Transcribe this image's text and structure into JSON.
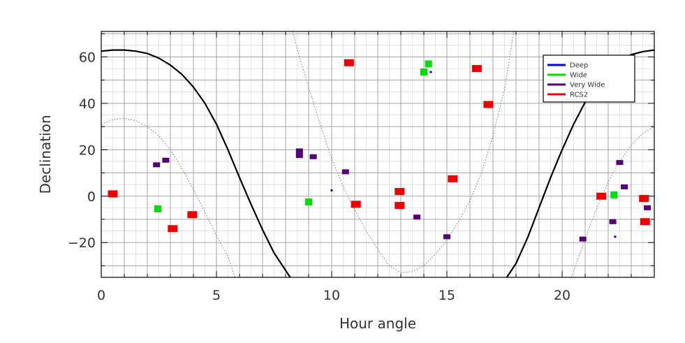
{
  "chart_data": {
    "type": "scatter",
    "title": "",
    "xlabel": "Hour angle",
    "ylabel": "Declination",
    "xlim": [
      0,
      24
    ],
    "ylim": [
      -35,
      71
    ],
    "xticks": [
      0,
      5,
      10,
      15,
      20
    ],
    "yticks": [
      -20,
      0,
      20,
      40,
      60
    ],
    "grid": true,
    "legend_position": "top-right",
    "colors": {
      "Deep": "#0000ee",
      "Wide": "#00dd00",
      "Very Wide": "#550077",
      "RCS2": "#ee0000",
      "curve": "#000000"
    },
    "legend": [
      "Deep",
      "Wide",
      "Very Wide",
      "RCS2"
    ],
    "series": [
      {
        "name": "Deep",
        "patches": [
          {
            "x": 10.0,
            "y": 2.5
          },
          {
            "x": 14.3,
            "y": 53.5
          },
          {
            "x": 22.3,
            "y": -17.5
          }
        ]
      },
      {
        "name": "Wide",
        "patches": [
          {
            "x": 2.45,
            "y": -5.5
          },
          {
            "x": 9.0,
            "y": -2.5
          },
          {
            "x": 14.0,
            "y": 53.5
          },
          {
            "x": 14.2,
            "y": 57
          },
          {
            "x": 22.25,
            "y": 0.5
          }
        ]
      },
      {
        "name": "Very Wide",
        "patches": [
          {
            "x": 2.4,
            "y": 13.5
          },
          {
            "x": 2.8,
            "y": 15.5
          },
          {
            "x": 8.6,
            "y": 19.5
          },
          {
            "x": 8.6,
            "y": 17.5
          },
          {
            "x": 9.2,
            "y": 17
          },
          {
            "x": 10.6,
            "y": 10.5
          },
          {
            "x": 13.7,
            "y": -9
          },
          {
            "x": 15.0,
            "y": -17.5
          },
          {
            "x": 20.9,
            "y": -18.5
          },
          {
            "x": 22.2,
            "y": -11
          },
          {
            "x": 22.5,
            "y": 14.5
          },
          {
            "x": 22.7,
            "y": 4
          },
          {
            "x": 23.7,
            "y": -5
          }
        ]
      },
      {
        "name": "RCS2",
        "patches": [
          {
            "x": 0.5,
            "y": 1
          },
          {
            "x": 3.1,
            "y": -14
          },
          {
            "x": 3.95,
            "y": -8
          },
          {
            "x": 10.75,
            "y": 57.5
          },
          {
            "x": 11.05,
            "y": -3.5
          },
          {
            "x": 12.95,
            "y": 2
          },
          {
            "x": 12.95,
            "y": -4
          },
          {
            "x": 15.25,
            "y": 7.5
          },
          {
            "x": 16.3,
            "y": 55
          },
          {
            "x": 16.8,
            "y": 39.5
          },
          {
            "x": 21.7,
            "y": 0
          },
          {
            "x": 23.55,
            "y": -1
          },
          {
            "x": 23.6,
            "y": -11
          }
        ]
      }
    ],
    "curves": [
      {
        "style": "solid",
        "segments": [
          [
            [
              0,
              62.5
            ],
            [
              0.5,
              63
            ],
            [
              1,
              63
            ],
            [
              1.5,
              62.5
            ],
            [
              2,
              61.5
            ],
            [
              2.5,
              59.5
            ],
            [
              3,
              56.5
            ],
            [
              3.5,
              52.5
            ],
            [
              4,
              47
            ],
            [
              4.5,
              40
            ],
            [
              5,
              31
            ],
            [
              5.5,
              20
            ],
            [
              6,
              8
            ],
            [
              6.5,
              -3.5
            ],
            [
              7,
              -14.5
            ],
            [
              7.5,
              -24.5
            ],
            [
              8,
              -32
            ],
            [
              8.2,
              -35
            ]
          ],
          [
            [
              17.6,
              -35
            ],
            [
              18,
              -29
            ],
            [
              18.5,
              -18
            ],
            [
              19,
              -5
            ],
            [
              19.5,
              8
            ],
            [
              20,
              20
            ],
            [
              20.5,
              31
            ],
            [
              21,
              40.5
            ],
            [
              21.5,
              48
            ],
            [
              22,
              54
            ],
            [
              22.5,
              58.5
            ],
            [
              23,
              61
            ],
            [
              23.5,
              62.3
            ],
            [
              24,
              63
            ]
          ]
        ]
      },
      {
        "style": "dotted",
        "segments": [
          [
            [
              0,
              31
            ],
            [
              0.5,
              33
            ],
            [
              1,
              33.5
            ],
            [
              1.5,
              32.5
            ],
            [
              2,
              30
            ],
            [
              2.5,
              26
            ],
            [
              3,
              20
            ],
            [
              3.5,
              12
            ],
            [
              4,
              3
            ],
            [
              4.5,
              -7
            ],
            [
              5,
              -17
            ],
            [
              5.5,
              -26
            ],
            [
              5.8,
              -35
            ]
          ],
          [
            [
              8.3,
              71
            ],
            [
              8.6,
              60
            ],
            [
              9,
              47
            ],
            [
              9.5,
              31
            ],
            [
              10,
              16
            ],
            [
              10.5,
              4
            ],
            [
              11,
              -6
            ],
            [
              11.5,
              -15
            ],
            [
              12,
              -23
            ],
            [
              12.5,
              -30
            ],
            [
              13,
              -33
            ],
            [
              13.5,
              -32.5
            ],
            [
              14,
              -30
            ],
            [
              14.5,
              -25
            ],
            [
              15,
              -19
            ],
            [
              15.5,
              -11
            ],
            [
              16,
              -2
            ],
            [
              16.5,
              10
            ],
            [
              17,
              26
            ],
            [
              17.5,
              46
            ],
            [
              17.9,
              71
            ]
          ],
          [
            [
              20.4,
              -35
            ],
            [
              20.8,
              -24
            ],
            [
              21.2,
              -13
            ],
            [
              21.6,
              -3
            ],
            [
              22,
              6
            ],
            [
              22.5,
              15
            ],
            [
              23,
              22
            ],
            [
              23.5,
              27
            ],
            [
              24,
              30
            ]
          ]
        ]
      }
    ]
  }
}
